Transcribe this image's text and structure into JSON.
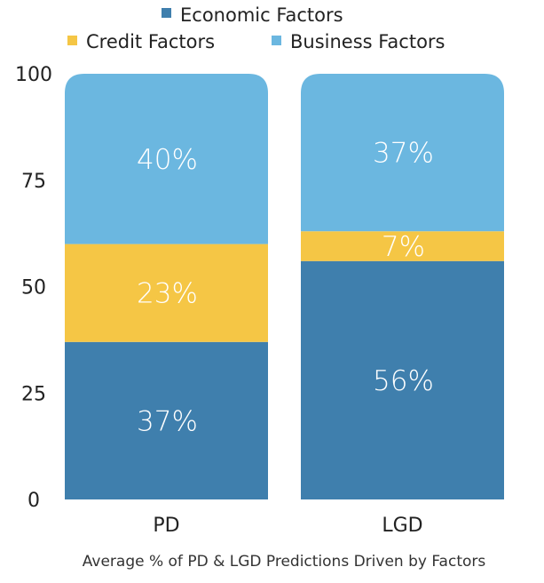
{
  "chart_data": {
    "type": "bar",
    "stacked": true,
    "title": "Average % of PD & LGD Predictions Driven by Factors",
    "xlabel": "",
    "ylabel": "",
    "categories": [
      "PD",
      "LGD"
    ],
    "ylim": [
      0,
      100
    ],
    "yticks": [
      0,
      25,
      50,
      75,
      100
    ],
    "grid": false,
    "legend_position": "top-center",
    "series": [
      {
        "name": "Economic Factors",
        "color": "#3f7fad",
        "values": [
          37,
          56
        ],
        "labels": [
          "37%",
          "56%"
        ]
      },
      {
        "name": "Credit Factors",
        "color": "#f5c645",
        "values": [
          23,
          7
        ],
        "labels": [
          "23%",
          "7%"
        ]
      },
      {
        "name": "Business Factors",
        "color": "#6bb7e0",
        "values": [
          40,
          37
        ],
        "labels": [
          "40%",
          "37%"
        ]
      }
    ]
  }
}
